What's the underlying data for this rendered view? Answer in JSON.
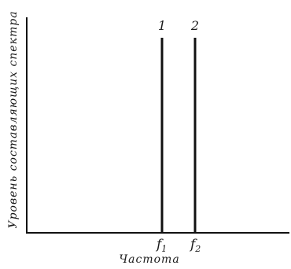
{
  "chart_data": {
    "type": "bar",
    "xlabel": "Частота",
    "ylabel": "Уровень составляющих спектра",
    "categories": [
      "f1",
      "f2"
    ],
    "series": [
      {
        "values": [
          1,
          1
        ]
      }
    ],
    "bar_labels": [
      "1",
      "2"
    ],
    "tick_labels": {
      "f1": {
        "main": "f",
        "sub": "1"
      },
      "f2": {
        "main": "f",
        "sub": "2"
      }
    },
    "ylim": [
      0,
      1
    ],
    "grid": false,
    "legend": "none"
  }
}
